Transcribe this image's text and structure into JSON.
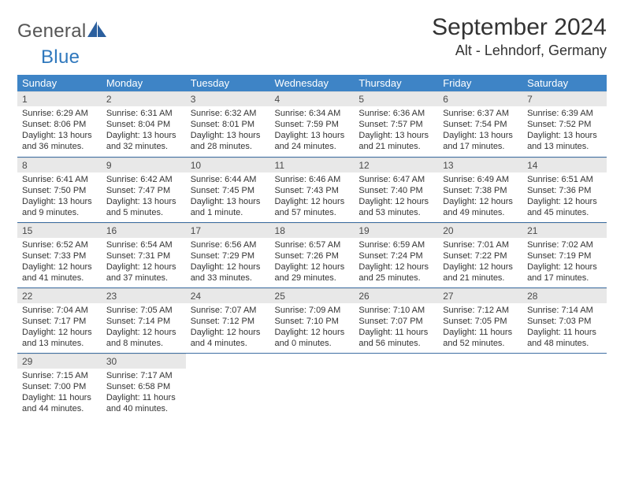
{
  "brand": {
    "part1": "General",
    "part2": "Blue",
    "color_text": "#555555",
    "color_accent": "#2f78bd"
  },
  "title": "September 2024",
  "location": "Alt - Lehndorf, Germany",
  "header_bg": "#3e84c6",
  "day_headers": [
    "Sunday",
    "Monday",
    "Tuesday",
    "Wednesday",
    "Thursday",
    "Friday",
    "Saturday"
  ],
  "rows": [
    [
      {
        "n": "1",
        "lines": [
          "Sunrise: 6:29 AM",
          "Sunset: 8:06 PM",
          "Daylight: 13 hours",
          "and 36 minutes."
        ]
      },
      {
        "n": "2",
        "lines": [
          "Sunrise: 6:31 AM",
          "Sunset: 8:04 PM",
          "Daylight: 13 hours",
          "and 32 minutes."
        ]
      },
      {
        "n": "3",
        "lines": [
          "Sunrise: 6:32 AM",
          "Sunset: 8:01 PM",
          "Daylight: 13 hours",
          "and 28 minutes."
        ]
      },
      {
        "n": "4",
        "lines": [
          "Sunrise: 6:34 AM",
          "Sunset: 7:59 PM",
          "Daylight: 13 hours",
          "and 24 minutes."
        ]
      },
      {
        "n": "5",
        "lines": [
          "Sunrise: 6:36 AM",
          "Sunset: 7:57 PM",
          "Daylight: 13 hours",
          "and 21 minutes."
        ]
      },
      {
        "n": "6",
        "lines": [
          "Sunrise: 6:37 AM",
          "Sunset: 7:54 PM",
          "Daylight: 13 hours",
          "and 17 minutes."
        ]
      },
      {
        "n": "7",
        "lines": [
          "Sunrise: 6:39 AM",
          "Sunset: 7:52 PM",
          "Daylight: 13 hours",
          "and 13 minutes."
        ]
      }
    ],
    [
      {
        "n": "8",
        "lines": [
          "Sunrise: 6:41 AM",
          "Sunset: 7:50 PM",
          "Daylight: 13 hours",
          "and 9 minutes."
        ]
      },
      {
        "n": "9",
        "lines": [
          "Sunrise: 6:42 AM",
          "Sunset: 7:47 PM",
          "Daylight: 13 hours",
          "and 5 minutes."
        ]
      },
      {
        "n": "10",
        "lines": [
          "Sunrise: 6:44 AM",
          "Sunset: 7:45 PM",
          "Daylight: 13 hours",
          "and 1 minute."
        ]
      },
      {
        "n": "11",
        "lines": [
          "Sunrise: 6:46 AM",
          "Sunset: 7:43 PM",
          "Daylight: 12 hours",
          "and 57 minutes."
        ]
      },
      {
        "n": "12",
        "lines": [
          "Sunrise: 6:47 AM",
          "Sunset: 7:40 PM",
          "Daylight: 12 hours",
          "and 53 minutes."
        ]
      },
      {
        "n": "13",
        "lines": [
          "Sunrise: 6:49 AM",
          "Sunset: 7:38 PM",
          "Daylight: 12 hours",
          "and 49 minutes."
        ]
      },
      {
        "n": "14",
        "lines": [
          "Sunrise: 6:51 AM",
          "Sunset: 7:36 PM",
          "Daylight: 12 hours",
          "and 45 minutes."
        ]
      }
    ],
    [
      {
        "n": "15",
        "lines": [
          "Sunrise: 6:52 AM",
          "Sunset: 7:33 PM",
          "Daylight: 12 hours",
          "and 41 minutes."
        ]
      },
      {
        "n": "16",
        "lines": [
          "Sunrise: 6:54 AM",
          "Sunset: 7:31 PM",
          "Daylight: 12 hours",
          "and 37 minutes."
        ]
      },
      {
        "n": "17",
        "lines": [
          "Sunrise: 6:56 AM",
          "Sunset: 7:29 PM",
          "Daylight: 12 hours",
          "and 33 minutes."
        ]
      },
      {
        "n": "18",
        "lines": [
          "Sunrise: 6:57 AM",
          "Sunset: 7:26 PM",
          "Daylight: 12 hours",
          "and 29 minutes."
        ]
      },
      {
        "n": "19",
        "lines": [
          "Sunrise: 6:59 AM",
          "Sunset: 7:24 PM",
          "Daylight: 12 hours",
          "and 25 minutes."
        ]
      },
      {
        "n": "20",
        "lines": [
          "Sunrise: 7:01 AM",
          "Sunset: 7:22 PM",
          "Daylight: 12 hours",
          "and 21 minutes."
        ]
      },
      {
        "n": "21",
        "lines": [
          "Sunrise: 7:02 AM",
          "Sunset: 7:19 PM",
          "Daylight: 12 hours",
          "and 17 minutes."
        ]
      }
    ],
    [
      {
        "n": "22",
        "lines": [
          "Sunrise: 7:04 AM",
          "Sunset: 7:17 PM",
          "Daylight: 12 hours",
          "and 13 minutes."
        ]
      },
      {
        "n": "23",
        "lines": [
          "Sunrise: 7:05 AM",
          "Sunset: 7:14 PM",
          "Daylight: 12 hours",
          "and 8 minutes."
        ]
      },
      {
        "n": "24",
        "lines": [
          "Sunrise: 7:07 AM",
          "Sunset: 7:12 PM",
          "Daylight: 12 hours",
          "and 4 minutes."
        ]
      },
      {
        "n": "25",
        "lines": [
          "Sunrise: 7:09 AM",
          "Sunset: 7:10 PM",
          "Daylight: 12 hours",
          "and 0 minutes."
        ]
      },
      {
        "n": "26",
        "lines": [
          "Sunrise: 7:10 AM",
          "Sunset: 7:07 PM",
          "Daylight: 11 hours",
          "and 56 minutes."
        ]
      },
      {
        "n": "27",
        "lines": [
          "Sunrise: 7:12 AM",
          "Sunset: 7:05 PM",
          "Daylight: 11 hours",
          "and 52 minutes."
        ]
      },
      {
        "n": "28",
        "lines": [
          "Sunrise: 7:14 AM",
          "Sunset: 7:03 PM",
          "Daylight: 11 hours",
          "and 48 minutes."
        ]
      }
    ],
    [
      {
        "n": "29",
        "lines": [
          "Sunrise: 7:15 AM",
          "Sunset: 7:00 PM",
          "Daylight: 11 hours",
          "and 44 minutes."
        ]
      },
      {
        "n": "30",
        "lines": [
          "Sunrise: 7:17 AM",
          "Sunset: 6:58 PM",
          "Daylight: 11 hours",
          "and 40 minutes."
        ]
      },
      null,
      null,
      null,
      null,
      null
    ]
  ]
}
